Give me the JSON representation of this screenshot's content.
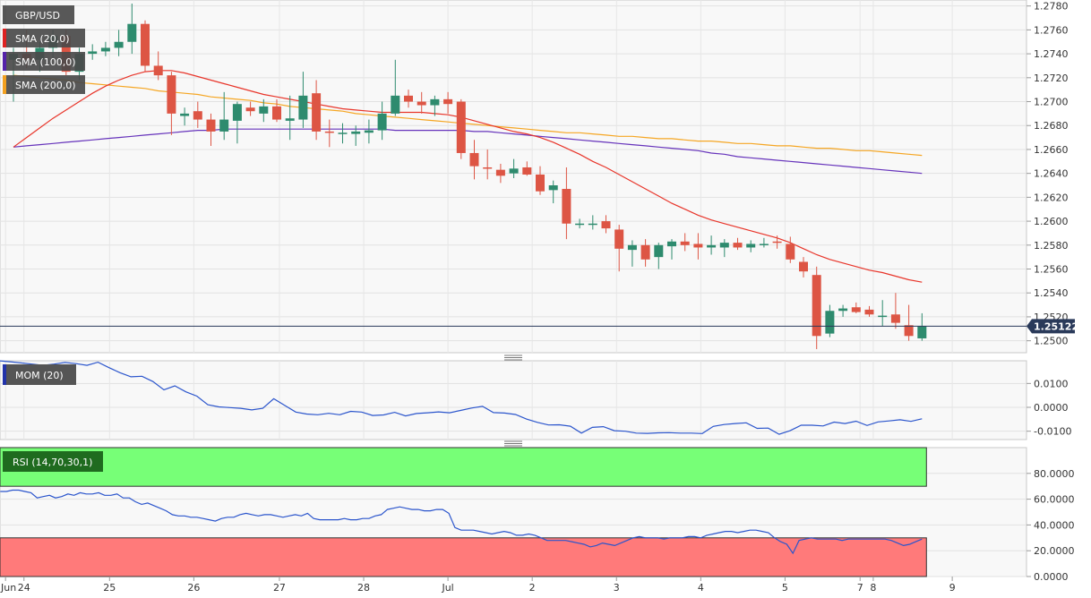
{
  "chart_data": [
    {
      "type": "candlestick",
      "symbol": "GBP/USD",
      "last_price": "1.25122",
      "ylim": [
        1.249,
        1.2785
      ],
      "y_ticks": [
        "1.2500",
        "1.2520",
        "1.2540",
        "1.2560",
        "1.2580",
        "1.2600",
        "1.2620",
        "1.2640",
        "1.2660",
        "1.2680",
        "1.2700",
        "1.2720",
        "1.2740",
        "1.2760",
        "1.2780"
      ],
      "x_labels": [
        {
          "label": "Jun",
          "i": -0.6
        },
        {
          "label": "24",
          "i": 0.8
        },
        {
          "label": "25",
          "i": 7.3
        },
        {
          "label": "26",
          "i": 13.7
        },
        {
          "label": "27",
          "i": 20.2
        },
        {
          "label": "28",
          "i": 26.6
        },
        {
          "label": "Jul",
          "i": 33.0
        },
        {
          "label": "2",
          "i": 39.4
        },
        {
          "label": "3",
          "i": 45.8
        },
        {
          "label": "4",
          "i": 52.2
        },
        {
          "label": "5",
          "i": 58.6
        },
        {
          "label": "7",
          "i": 64.3
        },
        {
          "label": "8",
          "i": 65.3
        },
        {
          "label": "9",
          "i": 71.3
        }
      ],
      "legend": [
        {
          "name": "GBP/USD",
          "color": "#555555"
        },
        {
          "name": "SMA (20,0)",
          "color": "#dd2222"
        },
        {
          "name": "SMA (100,0)",
          "color": "#5522aa"
        },
        {
          "name": "SMA (200,0)",
          "color": "#f2a020"
        }
      ],
      "colors": {
        "up": "#2e8b6e",
        "down": "#dd5544",
        "sma20": "#e8352a",
        "sma100": "#6633bb",
        "sma200": "#f5a623",
        "last_line": "#2a3a5a"
      },
      "candles": [
        [
          1.2735,
          1.2745,
          1.27,
          1.274
        ],
        [
          1.274,
          1.276,
          1.2728,
          1.2735
        ],
        [
          1.2735,
          1.275,
          1.2725,
          1.2745
        ],
        [
          1.2745,
          1.276,
          1.2735,
          1.2755
        ],
        [
          1.2755,
          1.276,
          1.2722,
          1.2725
        ],
        [
          1.2725,
          1.2745,
          1.2718,
          1.274
        ],
        [
          1.274,
          1.2748,
          1.2735,
          1.2742
        ],
        [
          1.2742,
          1.275,
          1.2738,
          1.2745
        ],
        [
          1.2745,
          1.276,
          1.2738,
          1.275
        ],
        [
          1.275,
          1.2782,
          1.274,
          1.2765
        ],
        [
          1.2765,
          1.2768,
          1.2725,
          1.273
        ],
        [
          1.273,
          1.2742,
          1.2718,
          1.2722
        ],
        [
          1.2722,
          1.2725,
          1.2672,
          1.269
        ],
        [
          1.2688,
          1.2695,
          1.268,
          1.269
        ],
        [
          1.2692,
          1.27,
          1.2678,
          1.2685
        ],
        [
          1.2685,
          1.269,
          1.2663,
          1.2675
        ],
        [
          1.2675,
          1.2708,
          1.2668,
          1.2685
        ],
        [
          1.2684,
          1.27,
          1.2665,
          1.2698
        ],
        [
          1.2695,
          1.27,
          1.2688,
          1.2692
        ],
        [
          1.269,
          1.2702,
          1.2683,
          1.2696
        ],
        [
          1.2696,
          1.2702,
          1.2683,
          1.2685
        ],
        [
          1.2684,
          1.2705,
          1.2668,
          1.2686
        ],
        [
          1.2685,
          1.2725,
          1.2678,
          1.2705
        ],
        [
          1.2707,
          1.2718,
          1.2668,
          1.2675
        ],
        [
          1.2675,
          1.2685,
          1.2662,
          1.2674
        ],
        [
          1.2674,
          1.2682,
          1.2665,
          1.2674
        ],
        [
          1.2673,
          1.268,
          1.2663,
          1.2675
        ],
        [
          1.2674,
          1.2685,
          1.2665,
          1.2676
        ],
        [
          1.2676,
          1.27,
          1.2668,
          1.269
        ],
        [
          1.269,
          1.2735,
          1.2688,
          1.2705
        ],
        [
          1.2705,
          1.271,
          1.2695,
          1.27
        ],
        [
          1.27,
          1.2708,
          1.269,
          1.2697
        ],
        [
          1.2697,
          1.2705,
          1.2688,
          1.2702
        ],
        [
          1.2702,
          1.2708,
          1.269,
          1.2698
        ],
        [
          1.27,
          1.2702,
          1.2652,
          1.2657
        ],
        [
          1.2657,
          1.2668,
          1.2635,
          1.2646
        ],
        [
          1.2645,
          1.266,
          1.2635,
          1.2644
        ],
        [
          1.2643,
          1.2648,
          1.2632,
          1.2638
        ],
        [
          1.264,
          1.2652,
          1.2636,
          1.2644
        ],
        [
          1.2645,
          1.265,
          1.2638,
          1.2639
        ],
        [
          1.2639,
          1.2646,
          1.2622,
          1.2625
        ],
        [
          1.2626,
          1.2634,
          1.2615,
          1.263
        ],
        [
          1.2627,
          1.2645,
          1.2585,
          1.2598
        ],
        [
          1.2598,
          1.2602,
          1.2594,
          1.2598
        ],
        [
          1.2598,
          1.2605,
          1.2593,
          1.2598
        ],
        [
          1.26,
          1.2605,
          1.259,
          1.2594
        ],
        [
          1.2593,
          1.2597,
          1.2558,
          1.2577
        ],
        [
          1.2576,
          1.2584,
          1.2562,
          1.258
        ],
        [
          1.258,
          1.2585,
          1.2562,
          1.2568
        ],
        [
          1.257,
          1.2582,
          1.256,
          1.258
        ],
        [
          1.2579,
          1.2585,
          1.2568,
          1.2583
        ],
        [
          1.2583,
          1.259,
          1.2575,
          1.258
        ],
        [
          1.2581,
          1.259,
          1.2568,
          1.2578
        ],
        [
          1.2578,
          1.2588,
          1.2572,
          1.258
        ],
        [
          1.2578,
          1.2585,
          1.257,
          1.2582
        ],
        [
          1.2582,
          1.2586,
          1.2576,
          1.2578
        ],
        [
          1.2578,
          1.2584,
          1.2574,
          1.2581
        ],
        [
          1.2581,
          1.2586,
          1.2578,
          1.2581
        ],
        [
          1.2583,
          1.2588,
          1.2577,
          1.2582
        ],
        [
          1.2581,
          1.2587,
          1.2565,
          1.2568
        ],
        [
          1.2566,
          1.257,
          1.2553,
          1.2558
        ],
        [
          1.2555,
          1.2562,
          1.2493,
          1.2504
        ],
        [
          1.2506,
          1.253,
          1.2503,
          1.2525
        ],
        [
          1.2525,
          1.253,
          1.252,
          1.2527
        ],
        [
          1.2528,
          1.2532,
          1.2523,
          1.2524
        ],
        [
          1.2526,
          1.2529,
          1.252,
          1.2522
        ],
        [
          1.252,
          1.2534,
          1.2512,
          1.2521
        ],
        [
          1.2522,
          1.254,
          1.251,
          1.2515
        ],
        [
          1.2513,
          1.253,
          1.25,
          1.2504
        ],
        [
          1.2502,
          1.2523,
          1.25,
          1.2512
        ]
      ],
      "sma20": [
        1.2662,
        1.267,
        1.2678,
        1.2686,
        1.2693,
        1.27,
        1.2707,
        1.2713,
        1.2718,
        1.2722,
        1.2725,
        1.2726,
        1.2726,
        1.2724,
        1.2721,
        1.2718,
        1.2715,
        1.2712,
        1.2709,
        1.2706,
        1.2704,
        1.2702,
        1.27,
        1.2698,
        1.2696,
        1.2694,
        1.2693,
        1.2692,
        1.2691,
        1.2691,
        1.2691,
        1.2691,
        1.269,
        1.2689,
        1.2687,
        1.2684,
        1.2681,
        1.2678,
        1.2675,
        1.2673,
        1.267,
        1.2666,
        1.2661,
        1.2656,
        1.265,
        1.2645,
        1.2639,
        1.2633,
        1.2627,
        1.2621,
        1.2615,
        1.261,
        1.2605,
        1.2601,
        1.2598,
        1.2595,
        1.2592,
        1.2589,
        1.2586,
        1.2582,
        1.2577,
        1.2572,
        1.2568,
        1.2565,
        1.2562,
        1.2559,
        1.2557,
        1.2554,
        1.2551,
        1.2549
      ],
      "sma100": [
        1.2662,
        1.2663,
        1.2664,
        1.2665,
        1.2666,
        1.2667,
        1.2668,
        1.2669,
        1.267,
        1.2671,
        1.2672,
        1.2673,
        1.2674,
        1.2675,
        1.2676,
        1.2676,
        1.2677,
        1.2677,
        1.2677,
        1.2677,
        1.2677,
        1.2677,
        1.2677,
        1.2677,
        1.2677,
        1.2677,
        1.2677,
        1.2677,
        1.2677,
        1.2676,
        1.2676,
        1.2676,
        1.2676,
        1.2676,
        1.2676,
        1.2675,
        1.2675,
        1.2674,
        1.2673,
        1.2672,
        1.2671,
        1.267,
        1.2669,
        1.2668,
        1.2667,
        1.2666,
        1.2665,
        1.2664,
        1.2663,
        1.2662,
        1.2661,
        1.266,
        1.2659,
        1.2657,
        1.2656,
        1.2654,
        1.2653,
        1.2652,
        1.2651,
        1.265,
        1.2649,
        1.2648,
        1.2647,
        1.2646,
        1.2645,
        1.2644,
        1.2643,
        1.2642,
        1.2641,
        1.264
      ],
      "sma200": [
        1.2722,
        1.2721,
        1.272,
        1.2719,
        1.2718,
        1.2716,
        1.2715,
        1.2714,
        1.2713,
        1.2712,
        1.2711,
        1.2709,
        1.2708,
        1.2707,
        1.2706,
        1.2704,
        1.2703,
        1.2702,
        1.2701,
        1.2699,
        1.2698,
        1.2696,
        1.2695,
        1.2694,
        1.2693,
        1.2692,
        1.269,
        1.2689,
        1.2688,
        1.2687,
        1.2686,
        1.2685,
        1.2684,
        1.2683,
        1.2682,
        1.2681,
        1.268,
        1.2679,
        1.2678,
        1.2677,
        1.2676,
        1.2675,
        1.2674,
        1.2674,
        1.2673,
        1.2672,
        1.2671,
        1.2671,
        1.267,
        1.2669,
        1.2669,
        1.2668,
        1.2667,
        1.2667,
        1.2666,
        1.2665,
        1.2665,
        1.2664,
        1.2663,
        1.2663,
        1.2662,
        1.2661,
        1.2661,
        1.266,
        1.2659,
        1.2659,
        1.2658,
        1.2657,
        1.2656,
        1.2655
      ]
    },
    {
      "type": "line",
      "name": "MOM (20)",
      "legend_color": "#2233aa",
      "line_color": "#2b55cc",
      "ylim": [
        -0.0135,
        0.0195
      ],
      "y_ticks": [
        "0.0100",
        "0.0000",
        "-0.0100"
      ],
      "values": [
        0.0195,
        0.0191,
        0.0186,
        0.0181,
        0.0176,
        0.0181,
        0.0188,
        0.0183,
        0.0176,
        0.0189,
        0.0166,
        0.0145,
        0.0128,
        0.013,
        0.0108,
        0.0073,
        0.009,
        0.0065,
        0.0047,
        0.0011,
        0.0002,
        -0.0001,
        -0.0004,
        -0.0011,
        -0.0004,
        0.0036,
        0.0008,
        -0.002,
        -0.0028,
        -0.0031,
        -0.0025,
        -0.0031,
        -0.0017,
        -0.002,
        -0.0034,
        -0.0032,
        -0.0021,
        -0.0036,
        -0.0026,
        -0.0023,
        -0.0019,
        -0.0023,
        -0.0013,
        -0.0003,
        0.0004,
        -0.0022,
        -0.0024,
        -0.003,
        -0.0049,
        -0.0063,
        -0.0074,
        -0.0073,
        -0.0079,
        -0.0108,
        -0.0084,
        -0.0081,
        -0.0098,
        -0.01,
        -0.0108,
        -0.0109,
        -0.0107,
        -0.0106,
        -0.0108,
        -0.0108,
        -0.011,
        -0.008,
        -0.0072,
        -0.0068,
        -0.0065,
        -0.0088,
        -0.0087,
        -0.0113,
        -0.0098,
        -0.0075,
        -0.0075,
        -0.0078,
        -0.0062,
        -0.0068,
        -0.0058,
        -0.0076,
        -0.0061,
        -0.0057,
        -0.0052,
        -0.0059,
        -0.0048
      ],
      "x_offset": -16
    },
    {
      "type": "line",
      "name": "RSI (14,70,30,1)",
      "legend_color": "#1a7a1a",
      "line_color": "#2b55cc",
      "ylim": [
        0,
        100
      ],
      "y_ticks": [
        "80.0000",
        "60.0000",
        "40.0000",
        "20.0000",
        "0.0000"
      ],
      "overbought": 70,
      "oversold": 30,
      "overbought_color": "#77ff77",
      "oversold_color": "#ff7a7a",
      "values": [
        66,
        66,
        67,
        67,
        66,
        65,
        61,
        62,
        63,
        61,
        62,
        64,
        63,
        65,
        64,
        64,
        65,
        63,
        63,
        64,
        61,
        61,
        58,
        56,
        57,
        55,
        53,
        51,
        48,
        47,
        47,
        46,
        46,
        45,
        44,
        43,
        45,
        46,
        46,
        48,
        49,
        48,
        47,
        48,
        48,
        47,
        46,
        47,
        48,
        47,
        49,
        45,
        44,
        44,
        44,
        44,
        45,
        44,
        44,
        45,
        45,
        47,
        48,
        52,
        53,
        54,
        53,
        52,
        52,
        51,
        51,
        52,
        52,
        49,
        38,
        36,
        36,
        36,
        35,
        34,
        33,
        34,
        35,
        34,
        32,
        32,
        33,
        32,
        30,
        28,
        28,
        28,
        28,
        27,
        26,
        25,
        23,
        24,
        26,
        25,
        24,
        26,
        28,
        30,
        31,
        30,
        30,
        30,
        29,
        30,
        30,
        30,
        31,
        31,
        30,
        32,
        33,
        34,
        35,
        35,
        34,
        35,
        36,
        36,
        35,
        34,
        30,
        27,
        25,
        18,
        28,
        29,
        30,
        29,
        29,
        29,
        29,
        28,
        29,
        29,
        29,
        29,
        29,
        29,
        29,
        28,
        26,
        24,
        25,
        27,
        29
      ]
    }
  ]
}
